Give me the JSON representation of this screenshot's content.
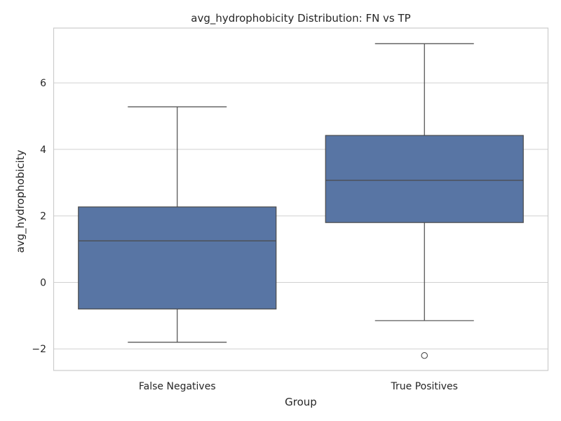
{
  "chart_data": {
    "type": "box",
    "title": "avg_hydrophobicity Distribution: FN vs TP",
    "xlabel": "Group",
    "ylabel": "avg_hydrophobicity",
    "categories": [
      "False Negatives",
      "True Positives"
    ],
    "boxes": [
      {
        "category": "False Negatives",
        "whisker_low": -1.8,
        "q1": -0.8,
        "median": 1.25,
        "q3": 2.27,
        "whisker_high": 5.28,
        "outliers": []
      },
      {
        "category": "True Positives",
        "whisker_low": -1.15,
        "q1": 1.8,
        "median": 3.07,
        "q3": 4.42,
        "whisker_high": 7.18,
        "outliers": [
          -2.2
        ]
      }
    ],
    "yticks": [
      -2,
      0,
      2,
      4,
      6
    ],
    "ytick_labels": [
      "−2",
      "0",
      "2",
      "4",
      "6"
    ],
    "ylim": [
      -2.65,
      7.65
    ],
    "grid": true,
    "colors": {
      "box_fill": "#5875a4",
      "line": "#4a4a4a",
      "grid": "#d0d0d0",
      "spine": "#cccccc"
    }
  }
}
